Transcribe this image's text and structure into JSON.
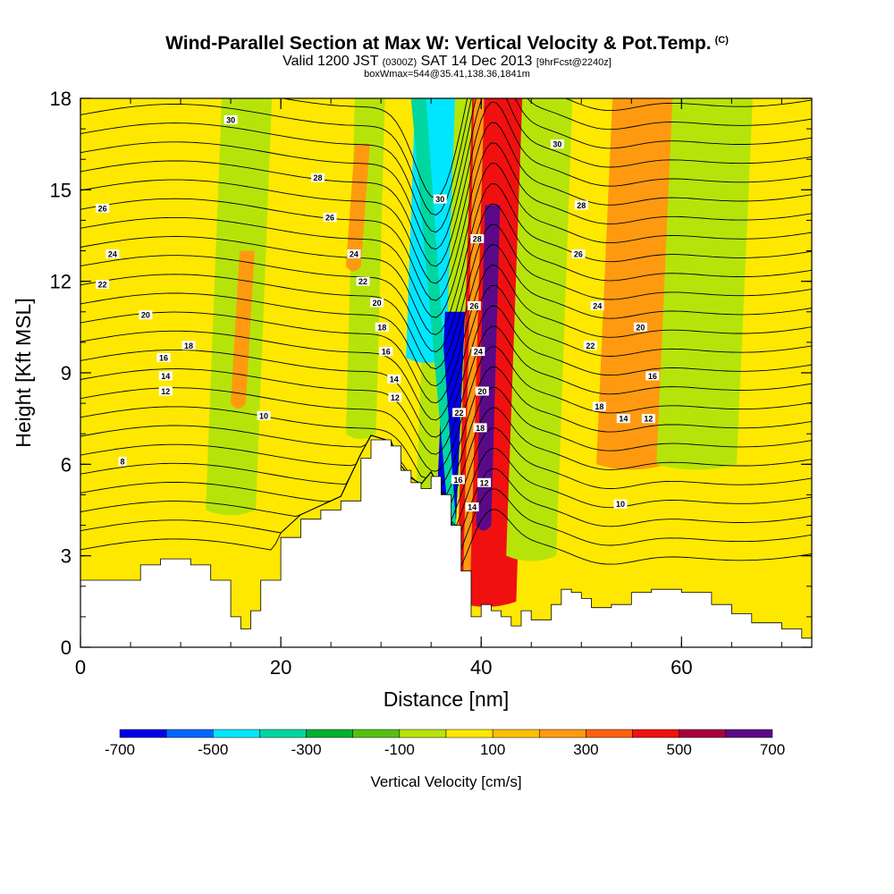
{
  "chart_data": {
    "type": "heatmap",
    "title": "Wind-Parallel Section at Max W: Vertical Velocity & Pot.Temp.",
    "title_mark": "(C)",
    "subtitle_parts": [
      "Valid 1200 JST",
      "(0300Z)",
      "SAT 14 Dec 2013",
      "[9hrFcst@2240z]"
    ],
    "subtitle2": "boxWmax=544@35.41,138.36,1841m",
    "xlabel": "Distance [nm]",
    "ylabel": "Height [Kft MSL]",
    "xlim": [
      0,
      73
    ],
    "ylim": [
      0,
      18
    ],
    "x_ticks": [
      0,
      20,
      40,
      60
    ],
    "y_ticks": [
      0,
      3,
      6,
      9,
      12,
      15,
      18
    ],
    "colorbar": {
      "label": "Vertical Velocity [cm/s]",
      "levels": [
        -700,
        -600,
        -500,
        -400,
        -300,
        -200,
        -100,
        0,
        100,
        200,
        300,
        400,
        500,
        600,
        700
      ],
      "tick_labels": [
        "-700",
        "-500",
        "-300",
        "-100",
        "100",
        "300",
        "500",
        "700"
      ],
      "tick_values": [
        -700,
        -500,
        -300,
        -100,
        100,
        300,
        500,
        700
      ],
      "colors": [
        "#0000e6",
        "#0066ff",
        "#00e6ff",
        "#00d6a0",
        "#00b030",
        "#55c010",
        "#b6e40a",
        "#ffe800",
        "#ffc000",
        "#ff9a10",
        "#ff6010",
        "#f01010",
        "#a8003c",
        "#5a0a88"
      ]
    },
    "velocity_regions": [
      {
        "value": "green",
        "x": [
          12.5,
          17.5
        ],
        "y_from": 4.5,
        "y_to": 18
      },
      {
        "value": "yellow",
        "x": [
          20.5,
          23.5
        ],
        "y_from": 3.0,
        "y_to": 18
      },
      {
        "value": "green",
        "x": [
          26.5,
          29.5
        ],
        "y_from": 7.0,
        "y_to": 18
      },
      {
        "value": "orange",
        "x": [
          26.5,
          28.0
        ],
        "y_from": 12.5,
        "y_to": 16.5
      },
      {
        "value": "orange",
        "x": [
          15.0,
          16.5
        ],
        "y_from": 8.0,
        "y_to": 13.0
      },
      {
        "value": "green",
        "x": [
          33.5,
          38.5
        ],
        "y_from": 5.0,
        "y_to": 18
      },
      {
        "value": "cyan",
        "x": [
          32.5,
          36.5
        ],
        "y_from": 9.5,
        "y_to": 18
      },
      {
        "value": "blue",
        "x": [
          35.5,
          37.5
        ],
        "y_from": 4.2,
        "y_to": 11.0
      },
      {
        "value": "red",
        "x": [
          37.5,
          43.5
        ],
        "y_from": 1.5,
        "y_to": 18
      },
      {
        "value": "purple",
        "x": [
          39.5,
          41.0
        ],
        "y_from": 4.0,
        "y_to": 14.5
      },
      {
        "value": "green",
        "x": [
          42.5,
          47.5
        ],
        "y_from": 3.0,
        "y_to": 18
      },
      {
        "value": "orange",
        "x": [
          51.5,
          58.5
        ],
        "y_from": 6.0,
        "y_to": 18
      },
      {
        "value": "green",
        "x": [
          57.5,
          65.5
        ],
        "y_from": 6.0,
        "y_to": 18
      }
    ],
    "terrain": {
      "x": [
        0,
        6,
        8,
        11,
        13,
        15,
        16,
        17,
        18,
        20,
        22,
        24,
        26,
        28,
        29,
        31,
        32,
        33,
        34,
        35,
        36,
        37,
        38,
        39,
        40,
        41,
        42,
        43,
        44,
        45,
        47,
        48,
        49,
        50,
        51,
        53,
        55,
        57,
        60,
        63,
        65,
        67,
        70,
        72,
        73
      ],
      "y": [
        2.2,
        2.7,
        2.9,
        2.7,
        2.2,
        1.0,
        0.6,
        1.2,
        2.2,
        3.6,
        4.2,
        4.5,
        4.8,
        6.2,
        6.8,
        6.6,
        5.8,
        5.4,
        5.2,
        5.6,
        5.0,
        4.0,
        2.5,
        1.0,
        1.4,
        1.2,
        1.0,
        0.7,
        1.2,
        0.9,
        1.4,
        1.9,
        1.8,
        1.6,
        1.3,
        1.4,
        1.8,
        1.9,
        1.8,
        1.4,
        1.1,
        0.8,
        0.6,
        0.3,
        0.3
      ]
    },
    "theta_contours": [
      6,
      8,
      10,
      12,
      13,
      14,
      15,
      16,
      17,
      18,
      19,
      20,
      21,
      22,
      23,
      24,
      25,
      26,
      27,
      28,
      29,
      30,
      31,
      32,
      33
    ],
    "contour_labels": [
      {
        "text": "8",
        "x": 4.2,
        "y": 6.1
      },
      {
        "text": "10",
        "x": 18.3,
        "y": 7.6
      },
      {
        "text": "12",
        "x": 8.5,
        "y": 8.4
      },
      {
        "text": "14",
        "x": 8.5,
        "y": 8.9
      },
      {
        "text": "16",
        "x": 8.3,
        "y": 9.5
      },
      {
        "text": "18",
        "x": 10.8,
        "y": 9.9
      },
      {
        "text": "20",
        "x": 6.5,
        "y": 10.9
      },
      {
        "text": "22",
        "x": 2.2,
        "y": 11.9
      },
      {
        "text": "24",
        "x": 3.2,
        "y": 12.9
      },
      {
        "text": "26",
        "x": 2.2,
        "y": 14.4
      },
      {
        "text": "28",
        "x": 23.7,
        "y": 15.4
      },
      {
        "text": "30",
        "x": 15.0,
        "y": 17.3
      },
      {
        "text": "26",
        "x": 24.9,
        "y": 14.1
      },
      {
        "text": "24",
        "x": 27.3,
        "y": 12.9
      },
      {
        "text": "22",
        "x": 28.2,
        "y": 12.0
      },
      {
        "text": "20",
        "x": 29.6,
        "y": 11.3
      },
      {
        "text": "18",
        "x": 30.1,
        "y": 10.5
      },
      {
        "text": "16",
        "x": 30.5,
        "y": 9.7
      },
      {
        "text": "14",
        "x": 31.3,
        "y": 8.8
      },
      {
        "text": "12",
        "x": 31.4,
        "y": 8.2
      },
      {
        "text": "30",
        "x": 35.9,
        "y": 14.7
      },
      {
        "text": "28",
        "x": 39.6,
        "y": 13.4
      },
      {
        "text": "26",
        "x": 39.3,
        "y": 11.2
      },
      {
        "text": "24",
        "x": 39.7,
        "y": 9.7
      },
      {
        "text": "22",
        "x": 37.8,
        "y": 7.7
      },
      {
        "text": "20",
        "x": 40.1,
        "y": 8.4
      },
      {
        "text": "18",
        "x": 39.9,
        "y": 7.2
      },
      {
        "text": "16",
        "x": 37.7,
        "y": 5.5
      },
      {
        "text": "14",
        "x": 39.1,
        "y": 4.6
      },
      {
        "text": "12",
        "x": 40.3,
        "y": 5.4
      },
      {
        "text": "30",
        "x": 47.6,
        "y": 16.5
      },
      {
        "text": "28",
        "x": 50.0,
        "y": 14.5
      },
      {
        "text": "26",
        "x": 49.7,
        "y": 12.9
      },
      {
        "text": "24",
        "x": 51.6,
        "y": 11.2
      },
      {
        "text": "22",
        "x": 50.9,
        "y": 9.9
      },
      {
        "text": "20",
        "x": 55.9,
        "y": 10.5
      },
      {
        "text": "18",
        "x": 51.8,
        "y": 7.9
      },
      {
        "text": "16",
        "x": 57.1,
        "y": 8.9
      },
      {
        "text": "14",
        "x": 54.2,
        "y": 7.5
      },
      {
        "text": "12",
        "x": 56.7,
        "y": 7.5
      },
      {
        "text": "10",
        "x": 53.9,
        "y": 4.7
      }
    ]
  }
}
